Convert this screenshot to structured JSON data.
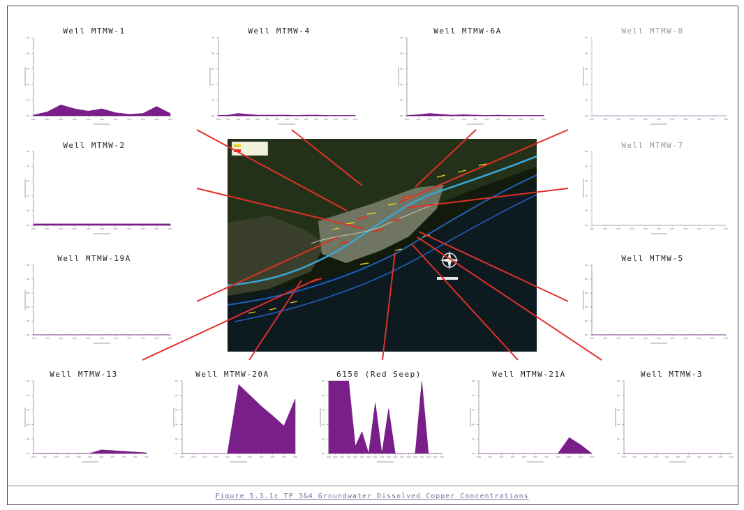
{
  "figure": {
    "caption": "Figure 5.3.1c TP 3&4 Groundwater Dissolved Copper Concentrations"
  },
  "colors": {
    "fill": "#7a1f8a",
    "leader": "#e0302a",
    "axis": "#888888"
  },
  "map": {
    "legend_text": "",
    "water": "#3aa7d8",
    "land": "#2b3322",
    "background": "#0e1208"
  },
  "chart_data": [
    {
      "type": "area",
      "title": "Well MTMW-1",
      "faded": false,
      "x": [
        0,
        1,
        2,
        3,
        4,
        5,
        6,
        7,
        8,
        9,
        10
      ],
      "values": [
        0.1,
        0.5,
        1.4,
        0.9,
        0.6,
        0.9,
        0.4,
        0.2,
        0.3,
        1.2,
        0.3
      ],
      "ylim": [
        0,
        10
      ]
    },
    {
      "type": "area",
      "title": "Well MTMW-4",
      "faded": false,
      "x": [
        0,
        1,
        2,
        3,
        4,
        5,
        6,
        7,
        8,
        9,
        10,
        11,
        12,
        13,
        14
      ],
      "values": [
        0.05,
        0.1,
        0.3,
        0.2,
        0.1,
        0.1,
        0.1,
        0.1,
        0.05,
        0.1,
        0.1,
        0.05,
        0.05,
        0.05,
        0.05
      ],
      "ylim": [
        0,
        10
      ]
    },
    {
      "type": "area",
      "title": "Well MTMW-6A",
      "faded": false,
      "x": [
        0,
        1,
        2,
        3,
        4,
        5,
        6,
        7,
        8,
        9,
        10,
        11,
        12
      ],
      "values": [
        0.05,
        0.15,
        0.3,
        0.2,
        0.1,
        0.15,
        0.1,
        0.05,
        0.1,
        0.05,
        0.05,
        0.05,
        0.05
      ],
      "ylim": [
        0,
        10
      ]
    },
    {
      "type": "area",
      "title": "Well MTMW-8",
      "faded": true,
      "x": [
        0,
        1,
        2,
        3,
        4,
        5,
        6,
        7,
        8,
        9,
        10
      ],
      "values": [
        0.02,
        0.02,
        0.02,
        0.02,
        0.02,
        0.02,
        0.02,
        0.02,
        0.02,
        0.02,
        0.02
      ],
      "ylim": [
        0,
        10
      ]
    },
    {
      "type": "area",
      "title": "Well MTMW-2",
      "faded": false,
      "x": [
        0,
        1,
        2,
        3,
        4,
        5,
        6,
        7,
        8,
        9,
        10
      ],
      "values": [
        0.2,
        0.2,
        0.2,
        0.2,
        0.2,
        0.2,
        0.2,
        0.2,
        0.2,
        0.2,
        0.2
      ],
      "ylim": [
        0,
        10
      ]
    },
    {
      "type": "area",
      "title": "Well MTMW-7",
      "faded": true,
      "x": [
        0,
        1,
        2,
        3,
        4,
        5,
        6,
        7,
        8,
        9,
        10
      ],
      "values": [
        0.02,
        0.02,
        0.02,
        0.02,
        0.02,
        0.02,
        0.02,
        0.02,
        0.02,
        0.02,
        0.02
      ],
      "ylim": [
        0,
        10
      ]
    },
    {
      "type": "area",
      "title": "Well MTMW-19A",
      "faded": false,
      "x": [
        0,
        1,
        2,
        3,
        4,
        5,
        6,
        7,
        8,
        9,
        10
      ],
      "values": [
        0.02,
        0.02,
        0.02,
        0.02,
        0.02,
        0.02,
        0.02,
        0.02,
        0.02,
        0.02,
        0.02
      ],
      "ylim": [
        0,
        10
      ]
    },
    {
      "type": "area",
      "title": "Well MTMW-5",
      "faded": false,
      "x": [
        0,
        1,
        2,
        3,
        4,
        5,
        6,
        7,
        8,
        9,
        10
      ],
      "values": [
        0.02,
        0.02,
        0.02,
        0.02,
        0.02,
        0.02,
        0.02,
        0.02,
        0.02,
        0.02,
        0.02
      ],
      "ylim": [
        0,
        10
      ]
    },
    {
      "type": "area",
      "title": "Well MTMW-13",
      "faded": false,
      "x": [
        0,
        1,
        2,
        3,
        4,
        5,
        6,
        7,
        8,
        9,
        10
      ],
      "values": [
        0.02,
        0.02,
        0.02,
        0.02,
        0.02,
        0.02,
        0.5,
        0.4,
        0.3,
        0.2,
        0.1
      ],
      "ylim": [
        0,
        10
      ]
    },
    {
      "type": "area",
      "title": "Well MTMW-20A",
      "faded": false,
      "x": [
        0,
        1,
        2,
        3,
        4,
        5,
        6,
        7,
        8,
        9,
        10
      ],
      "values": [
        0,
        0,
        0,
        0,
        0,
        9.5,
        8,
        6.5,
        5.2,
        3.8,
        7.5
      ],
      "ylim": [
        0,
        10
      ]
    },
    {
      "type": "area",
      "title": "6150 (Red Seep)",
      "faded": false,
      "x": [
        0,
        1,
        2,
        3,
        4,
        5,
        6,
        7,
        8,
        9,
        10,
        11,
        12,
        13,
        14,
        15,
        16,
        17
      ],
      "values": [
        10,
        10,
        10,
        10,
        1,
        3,
        0,
        7,
        0,
        6.2,
        0,
        0,
        0,
        0,
        10,
        0,
        0,
        0
      ],
      "ylim": [
        0,
        10
      ]
    },
    {
      "type": "area",
      "title": "Well MTMW-21A",
      "faded": false,
      "x": [
        0,
        1,
        2,
        3,
        4,
        5,
        6,
        7,
        8,
        9,
        10
      ],
      "values": [
        0,
        0,
        0,
        0,
        0,
        0,
        0,
        0,
        2.2,
        1.2,
        0
      ],
      "ylim": [
        0,
        10
      ]
    },
    {
      "type": "area",
      "title": "Well MTMW-3",
      "faded": false,
      "x": [
        0,
        1,
        2,
        3,
        4,
        5,
        6,
        7,
        8,
        9,
        10
      ],
      "values": [
        0,
        0,
        0,
        0,
        0,
        0,
        0,
        0,
        0,
        0,
        0
      ],
      "ylim": [
        0,
        10
      ]
    }
  ]
}
